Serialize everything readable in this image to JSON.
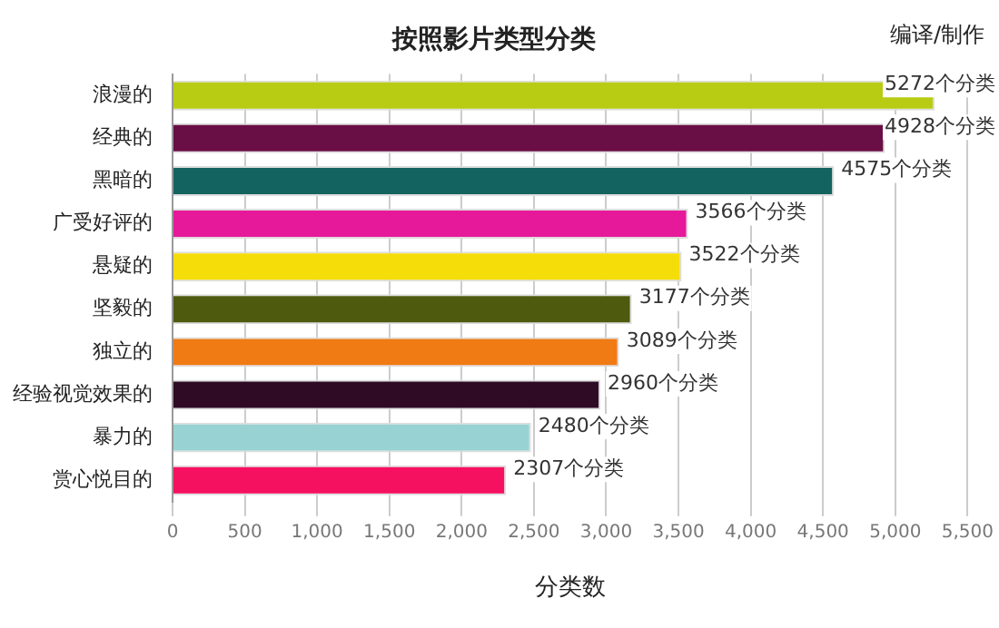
{
  "chart_data": {
    "type": "bar",
    "orientation": "horizontal",
    "title": "按照影片类型分类",
    "xlabel": "分类数",
    "annotations": [
      "编译/制作"
    ],
    "categories": [
      "浪漫的",
      "经典的",
      "黑暗的",
      "广受好评的",
      "悬疑的",
      "坚毅的",
      "独立的",
      "经验视觉效果的",
      "暴力的",
      "赏心悦目的"
    ],
    "values": [
      5272,
      4928,
      4575,
      3566,
      3522,
      3177,
      3089,
      2960,
      2480,
      2307
    ],
    "colors": [
      "#b9cc14",
      "#6a0f45",
      "#136460",
      "#e6199a",
      "#f5dd0a",
      "#4e5a0e",
      "#f07a14",
      "#2f0b25",
      "#98d2d2",
      "#f51060"
    ],
    "value_labels": [
      "5272个分类",
      "4928个分类",
      "4575个分类",
      "3566个分类",
      "3522个分类",
      "3177个分类",
      "3089个分类",
      "2960个分类",
      "2480个分类",
      "2307个分类"
    ],
    "xlim": [
      0,
      5500
    ],
    "xticks": [
      0,
      {
        "value": 500,
        "label": "500"
      },
      {
        "value": 1000,
        "label": "1,000"
      },
      {
        "value": 1500,
        "label": "1,500"
      },
      {
        "value": 2000,
        "label": "2,000"
      },
      {
        "value": 2500,
        "label": "2,500"
      },
      {
        "value": 3000,
        "label": "3,000"
      },
      {
        "value": 3500,
        "label": "3,500"
      },
      {
        "value": 4000,
        "label": "4,000"
      },
      {
        "value": 4500,
        "label": "4,500"
      },
      {
        "value": 5000,
        "label": "5,000"
      },
      {
        "value": 5500,
        "label": "5,500"
      }
    ],
    "grid": "x",
    "legend": false
  }
}
